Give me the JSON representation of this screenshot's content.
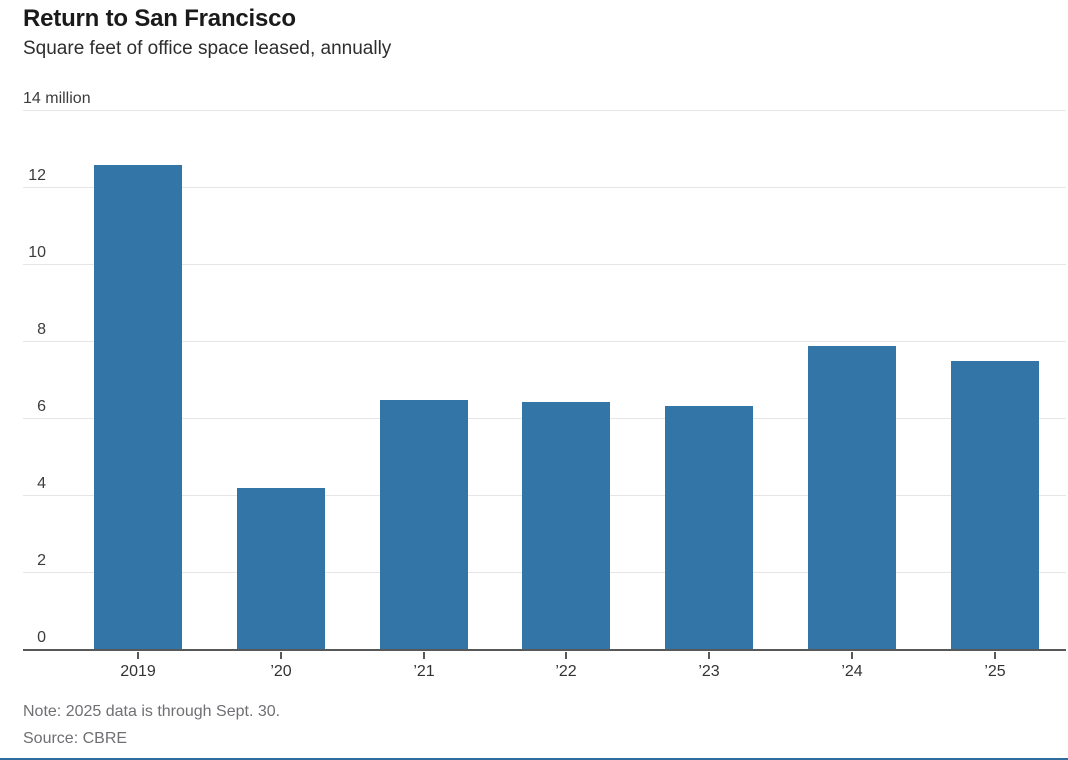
{
  "header": {
    "title": "Return to San Francisco",
    "subtitle": "Square feet of office space leased, annually"
  },
  "footer": {
    "note": "Note: 2025 data is through Sept. 30.",
    "source": "Source: CBRE"
  },
  "colors": {
    "bar": "#3375a6",
    "bottom_accent": "#2e6d9e",
    "gridline": "#e6e6e6",
    "axis": "#57585a"
  },
  "chart_data": {
    "type": "bar",
    "title": "Return to San Francisco",
    "subtitle": "Square feet of office space leased, annually",
    "unit": "million square feet",
    "categories": [
      "2019",
      "’20",
      "’21",
      "’22",
      "’23",
      "’24",
      "’25"
    ],
    "values": [
      12.6,
      4.2,
      6.5,
      6.45,
      6.35,
      7.9,
      7.5
    ],
    "xlabel": "",
    "ylabel": "",
    "ylim": [
      0,
      14
    ],
    "yticks": [
      0,
      2,
      4,
      6,
      8,
      10,
      12,
      14
    ],
    "ytick_top_label": "14 million",
    "grid": true,
    "legend": false,
    "bar_color": "#3375a6",
    "note": "Note: 2025 data is through Sept. 30.",
    "source": "Source: CBRE"
  }
}
